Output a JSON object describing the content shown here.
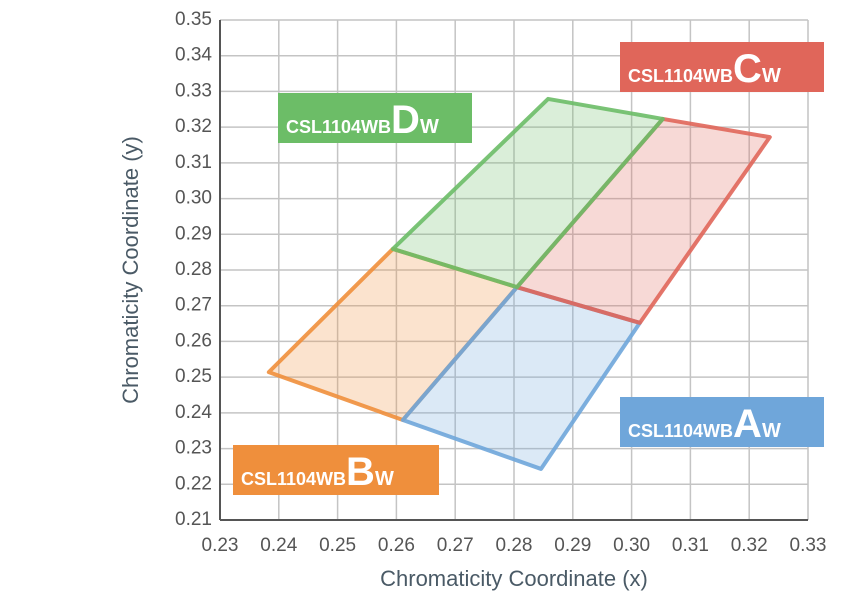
{
  "chart_data": {
    "type": "polygon",
    "x_label": "Chromaticity Coordinate (x)",
    "y_label": "Chromaticity Coordinate (y)",
    "xlim": [
      0.23,
      0.33
    ],
    "xticks": [
      0.23,
      0.24,
      0.25,
      0.26,
      0.27,
      0.28,
      0.29,
      {
        "value": 0.3,
        "label": "0.30"
      },
      0.31,
      0.32,
      0.33
    ],
    "ylim": [
      0.21,
      0.35
    ],
    "yticks": [
      0.21,
      0.22,
      0.23,
      0.24,
      0.25,
      0.26,
      0.27,
      0.28,
      0.29,
      {
        "value": 0.3,
        "label": "0.30"
      },
      0.31,
      0.32,
      0.33,
      0.34,
      0.35
    ],
    "grid": true,
    "series": [
      {
        "label": {
          "prefix": "CSL1104WB",
          "letter": "B",
          "suffix": "W"
        },
        "color": "#ef8f3c",
        "x": [
          0.2383,
          0.2594,
          0.2805,
          0.2611
        ],
        "y": [
          0.2514,
          0.2859,
          0.2752,
          0.238
        ]
      },
      {
        "label": {
          "prefix": "CSL1104WB",
          "letter": "A",
          "suffix": "W"
        },
        "color": "#6fa6da",
        "x": [
          0.2611,
          0.2805,
          0.3014,
          0.2846
        ],
        "y": [
          0.238,
          0.2752,
          0.2652,
          0.2243
        ]
      },
      {
        "label": {
          "prefix": "CSL1104WB",
          "letter": "C",
          "suffix": "W"
        },
        "color": "#e0665a",
        "x": [
          0.2805,
          0.3014,
          0.3235,
          0.3053
        ],
        "y": [
          0.2752,
          0.2652,
          0.3172,
          0.3223
        ]
      },
      {
        "label": {
          "prefix": "CSL1104WB",
          "letter": "D",
          "suffix": "W"
        },
        "color": "#6cbd67",
        "x": [
          0.2594,
          0.2805,
          0.3053,
          0.2858
        ],
        "y": [
          0.2859,
          0.2752,
          0.3223,
          0.3279
        ]
      }
    ]
  }
}
